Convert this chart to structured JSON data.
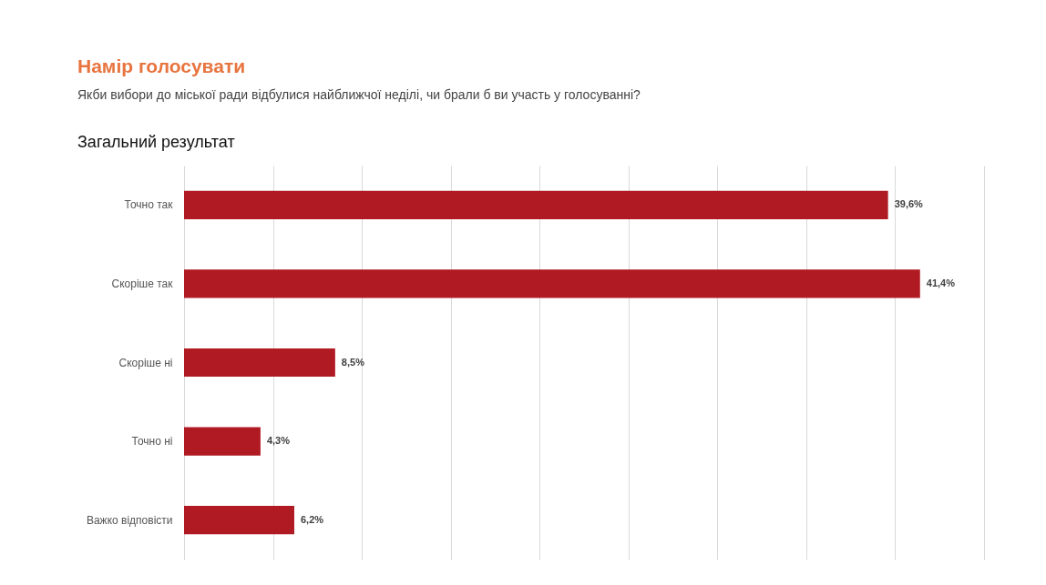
{
  "chart_data": {
    "type": "bar",
    "orientation": "horizontal",
    "title": "Намір голосувати",
    "subtitle": "Якби вибори до міської ради відбулися найближчої неділі, чи брали б ви участь у голосуванні?",
    "annotations": [
      "Загальний результат"
    ],
    "categories": [
      "Точно так",
      "Скоріше так",
      "Скоріше ні",
      "Точно ні",
      "Важко відповісти"
    ],
    "values": [
      39.6,
      41.4,
      8.5,
      4.3,
      6.2
    ],
    "value_labels": [
      "39,6%",
      "41,4%",
      "8,5%",
      "4,3%",
      "6,2%"
    ],
    "color": "#b01a22",
    "xlim": [
      0,
      45
    ],
    "xticks": [
      {
        "value": 0,
        "label": null
      },
      {
        "value": 5,
        "label": null
      },
      {
        "value": 10,
        "label": null
      },
      {
        "value": 15,
        "label": null
      },
      {
        "value": 20,
        "label": null
      },
      {
        "value": 25,
        "label": null
      },
      {
        "value": 30,
        "label": null
      },
      {
        "value": 35,
        "label": null
      },
      {
        "value": 40,
        "label": null
      },
      {
        "value": 45,
        "label": null
      }
    ],
    "grid": "x",
    "tick_labels": "y"
  }
}
